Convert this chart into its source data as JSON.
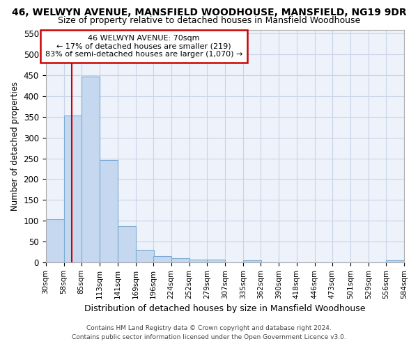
{
  "title_line1": "46, WELWYN AVENUE, MANSFIELD WOODHOUSE, MANSFIELD, NG19 9DR",
  "title_line2": "Size of property relative to detached houses in Mansfield Woodhouse",
  "xlabel": "Distribution of detached houses by size in Mansfield Woodhouse",
  "ylabel": "Number of detached properties",
  "footer_line1": "Contains HM Land Registry data © Crown copyright and database right 2024.",
  "footer_line2": "Contains public sector information licensed under the Open Government Licence v3.0.",
  "annotation_line1": "46 WELWYN AVENUE: 70sqm",
  "annotation_line2": "← 17% of detached houses are smaller (219)",
  "annotation_line3": "83% of semi-detached houses are larger (1,070) →",
  "property_size_sqm": 70,
  "bin_edges": [
    30,
    58,
    85,
    113,
    141,
    169,
    196,
    224,
    252,
    279,
    307,
    335,
    362,
    390,
    418,
    446,
    473,
    501,
    529,
    556,
    584
  ],
  "bar_heights": [
    103,
    353,
    447,
    246,
    87,
    30,
    14,
    9,
    6,
    6,
    0,
    5,
    0,
    0,
    0,
    0,
    0,
    0,
    0,
    5
  ],
  "bar_color": "#c5d8f0",
  "bar_edge_color": "#7aabd4",
  "vline_color": "#cc0000",
  "vline_x": 70,
  "annotation_box_color": "#cc0000",
  "grid_color": "#c8d4e8",
  "background_color": "#eef2fa",
  "ylim": [
    0,
    560
  ],
  "yticks": [
    0,
    50,
    100,
    150,
    200,
    250,
    300,
    350,
    400,
    450,
    500,
    550
  ]
}
